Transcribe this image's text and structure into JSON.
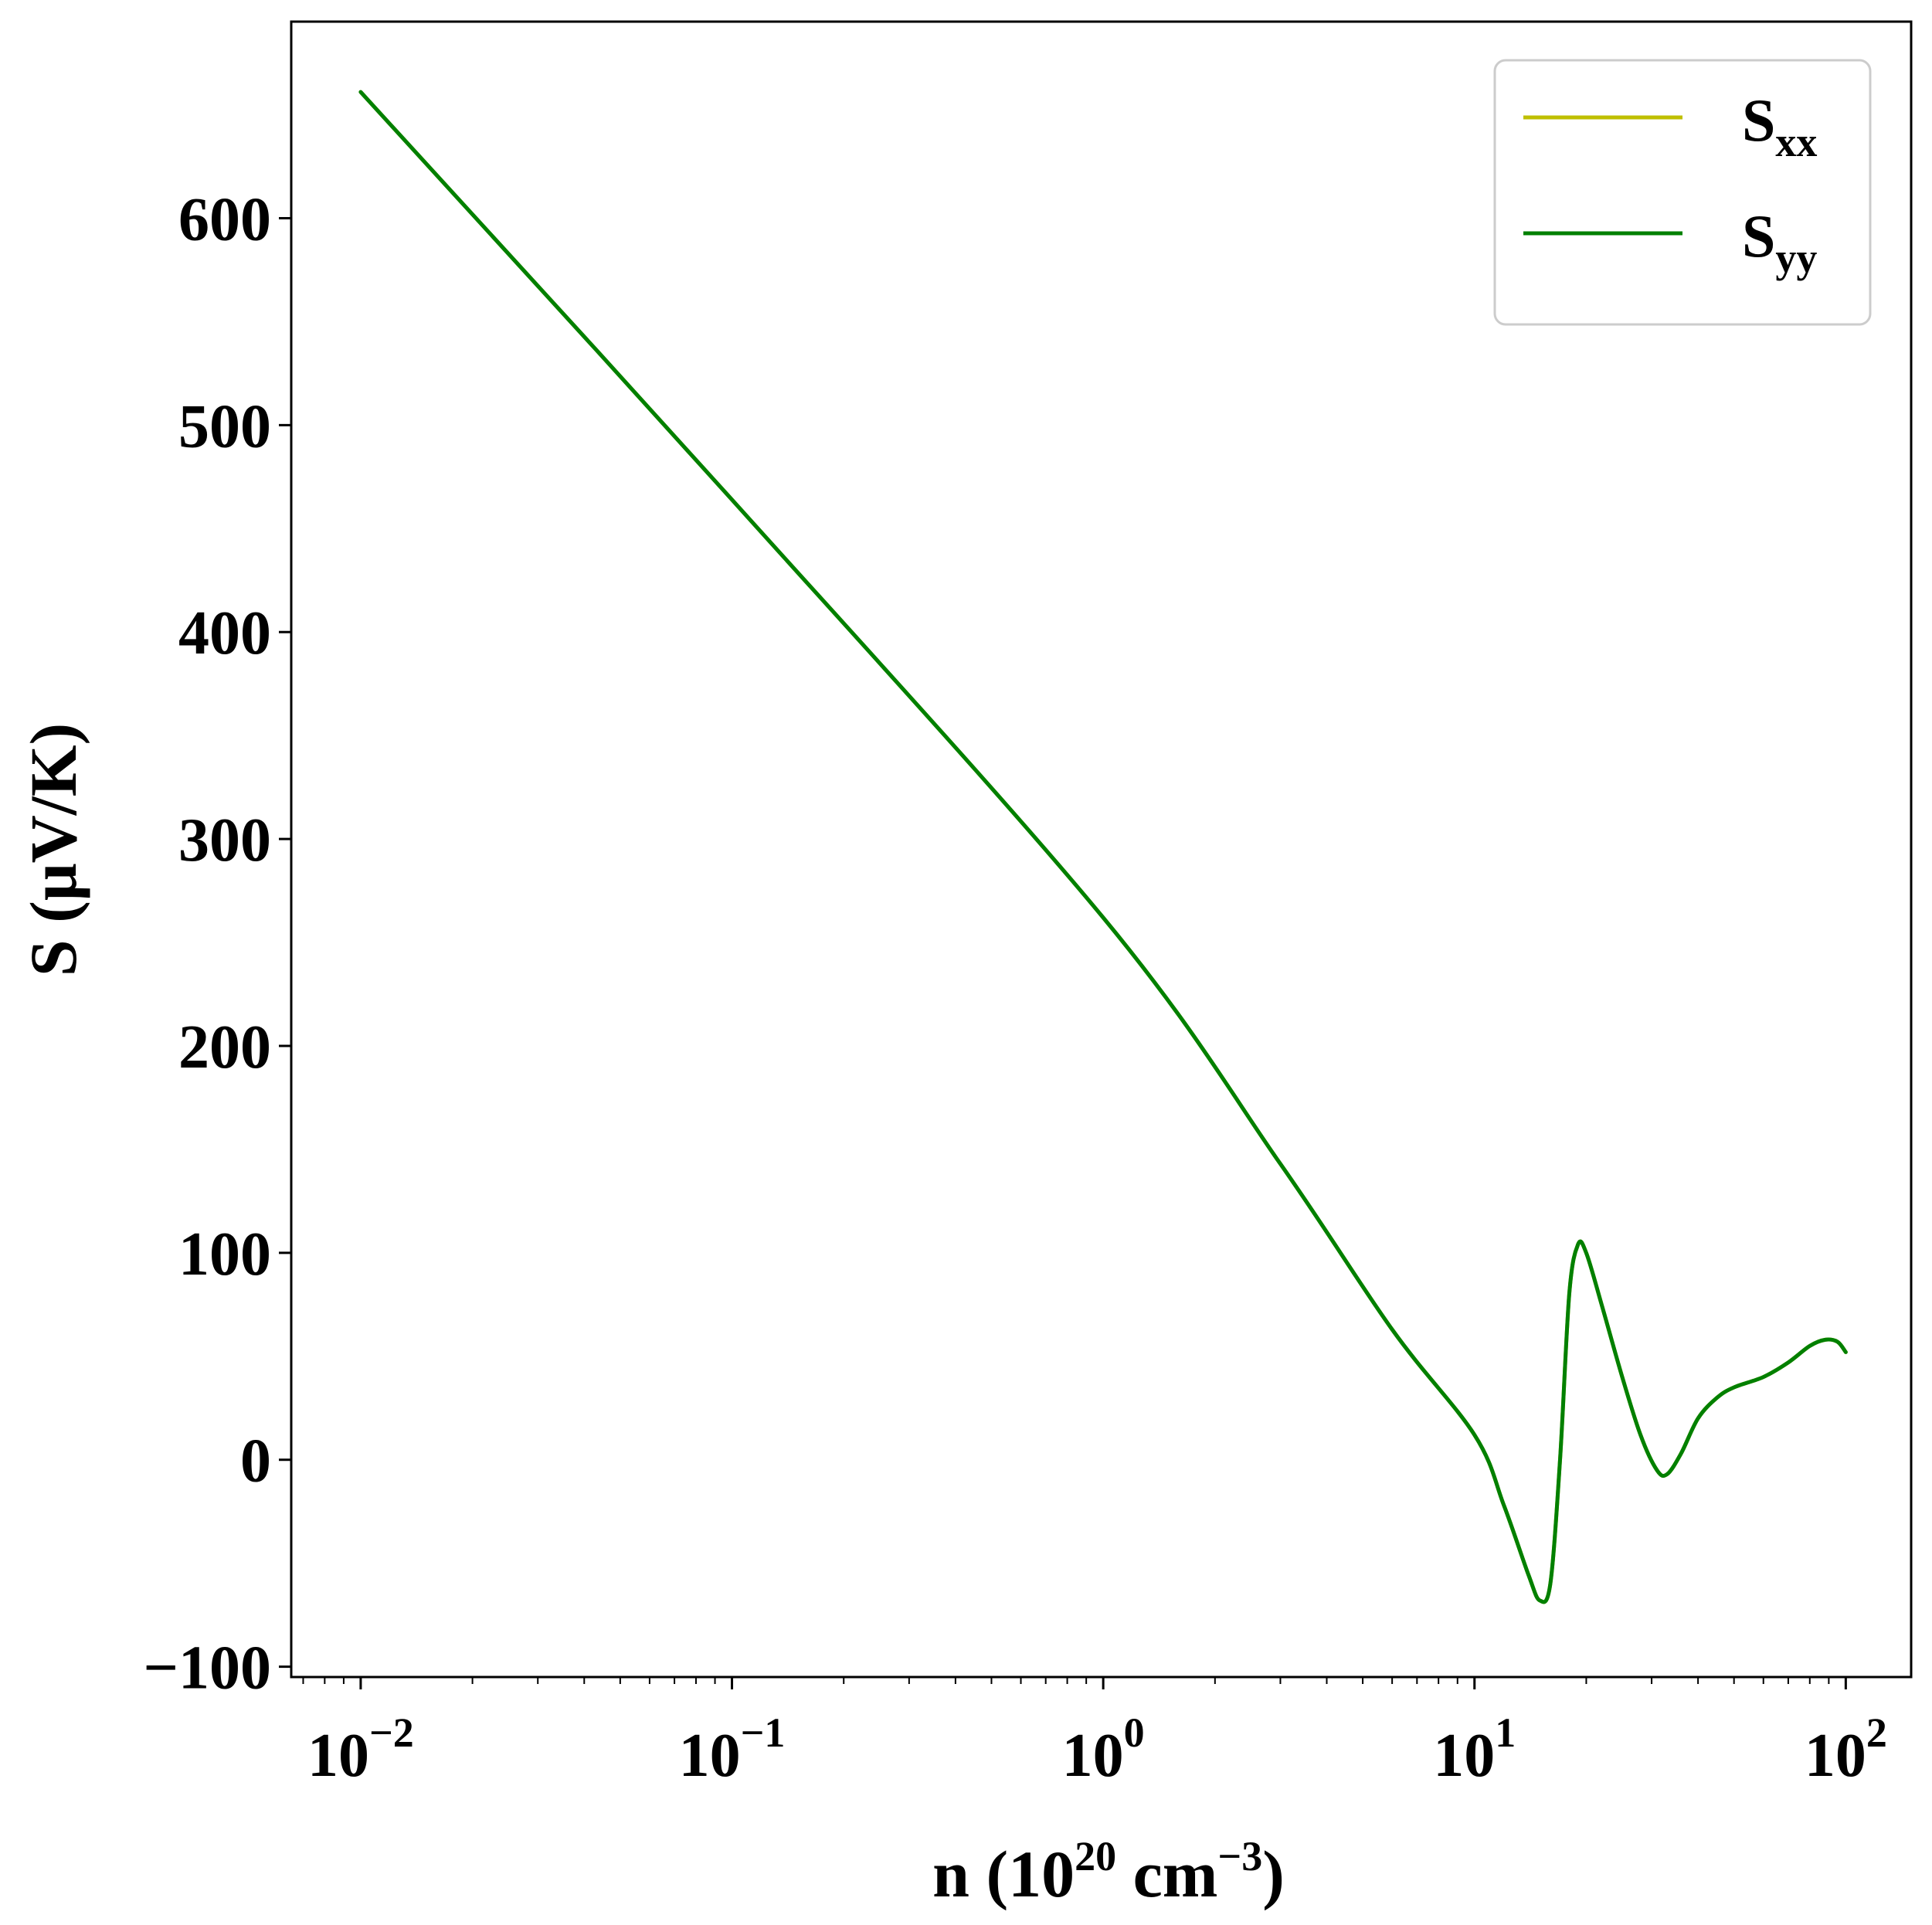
{
  "chart_data": {
    "type": "line",
    "xscale": "log",
    "xlim": [
      0.0065,
      150
    ],
    "ylim": [
      -105,
      695
    ],
    "grid": false,
    "legend_placement": "top-right",
    "x_tick_labels": [
      {
        "value": 0.01,
        "base": "10",
        "exp": "−2"
      },
      {
        "value": 0.1,
        "base": "10",
        "exp": "−1"
      },
      {
        "value": 1,
        "base": "10",
        "exp": "0"
      },
      {
        "value": 10,
        "base": "10",
        "exp": "1"
      },
      {
        "value": 100,
        "base": "10",
        "exp": "2"
      }
    ],
    "y_ticks": [
      -100,
      0,
      100,
      200,
      300,
      400,
      500,
      600
    ],
    "y_tick_labels": [
      "−100",
      "0",
      "100",
      "200",
      "300",
      "400",
      "500",
      "600"
    ],
    "xlabel": {
      "pre": "n (10",
      "sup1": "20",
      "mid": " cm",
      "sup2": "−3",
      "post": ")"
    },
    "ylabel": "S (μV/K)",
    "series": [
      {
        "name": {
          "base": "S",
          "sub": "xx"
        },
        "color": "#bfbf00",
        "x": [
          0.01,
          0.1,
          1,
          3,
          6,
          10,
          12,
          14,
          15,
          16,
          17,
          18,
          19,
          20,
          22,
          25,
          28,
          31,
          33,
          36,
          40,
          45,
          50,
          60,
          70,
          80,
          88,
          95,
          100
        ],
        "y": [
          661,
          464,
          262,
          143,
          63,
          12,
          -22,
          -56,
          -68,
          -60,
          0,
          80,
          104,
          100,
          75,
          40,
          12,
          -5,
          -7,
          3,
          20,
          30,
          35,
          40,
          47,
          55,
          58,
          57,
          52
        ]
      },
      {
        "name": {
          "base": "S",
          "sub": "yy"
        },
        "color": "#008000",
        "x": [
          0.01,
          0.1,
          1,
          3,
          6,
          10,
          12,
          14,
          15,
          16,
          17,
          18,
          19,
          20,
          22,
          25,
          28,
          31,
          33,
          36,
          40,
          45,
          50,
          60,
          70,
          80,
          88,
          95,
          100
        ],
        "y": [
          661,
          464,
          262,
          143,
          63,
          12,
          -22,
          -56,
          -68,
          -60,
          0,
          80,
          104,
          100,
          75,
          40,
          12,
          -5,
          -7,
          3,
          20,
          30,
          35,
          40,
          47,
          55,
          58,
          57,
          52
        ]
      }
    ]
  }
}
